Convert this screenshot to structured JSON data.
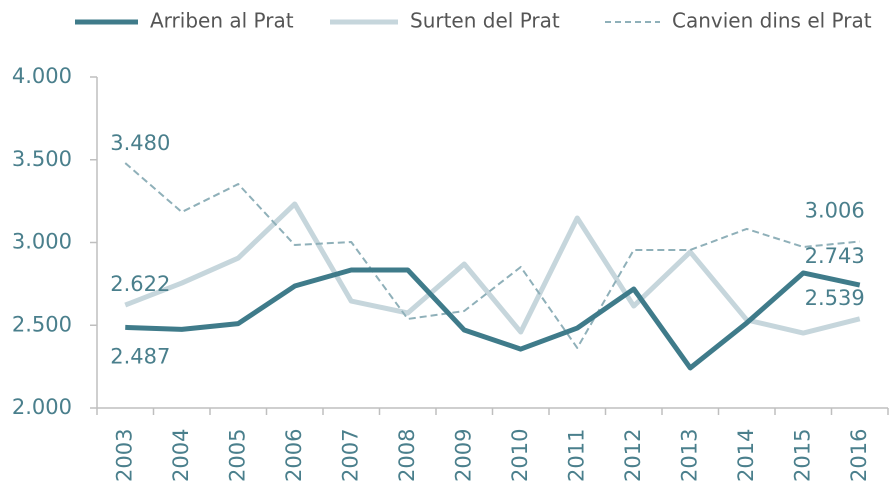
{
  "chart_data": {
    "type": "line",
    "categories": [
      "2003",
      "2004",
      "2005",
      "2006",
      "2007",
      "2008",
      "2009",
      "2010",
      "2011",
      "2012",
      "2013",
      "2014",
      "2015",
      "2016"
    ],
    "series": [
      {
        "name": "Arriben al Prat",
        "color": "#3f7b8a",
        "style": "solid",
        "width": 5,
        "values": [
          2487,
          2475,
          2510,
          2737,
          2834,
          2834,
          2471,
          2356,
          2483,
          2719,
          2242,
          2514,
          2816,
          2743
        ],
        "value_labels": [
          "2.487",
          null,
          null,
          null,
          null,
          null,
          null,
          null,
          null,
          null,
          null,
          null,
          null,
          "2.743"
        ]
      },
      {
        "name": "Surten del Prat",
        "color": "#c6d6dc",
        "style": "solid",
        "width": 5,
        "values": [
          2622,
          2755,
          2906,
          3233,
          2646,
          2574,
          2870,
          2459,
          3148,
          2616,
          2943,
          2532,
          2453,
          2539
        ],
        "value_labels": [
          "2.622",
          null,
          null,
          null,
          null,
          null,
          null,
          null,
          null,
          null,
          null,
          null,
          null,
          "2.539"
        ]
      },
      {
        "name": "Canvien dins el Prat",
        "color": "#8fb0b9",
        "style": "dashed",
        "width": 2,
        "values": [
          3480,
          3184,
          3353,
          2985,
          3003,
          2538,
          2586,
          2852,
          2363,
          2955,
          2955,
          3082,
          2973,
          3006
        ],
        "value_labels": [
          "3.480",
          null,
          null,
          null,
          null,
          null,
          null,
          null,
          null,
          null,
          null,
          null,
          null,
          "3.006"
        ]
      }
    ],
    "ylim": [
      2000,
      4000
    ],
    "yticks": [
      {
        "value": 2000,
        "label": "2.000"
      },
      {
        "value": 2500,
        "label": "2.500"
      },
      {
        "value": 3000,
        "label": "3.000"
      },
      {
        "value": 3500,
        "label": "3.500"
      },
      {
        "value": 4000,
        "label": "4.000"
      }
    ],
    "grid": false,
    "legend": "top"
  }
}
